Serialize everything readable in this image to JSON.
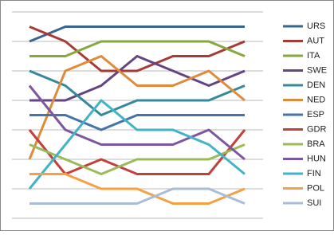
{
  "chart_data": {
    "type": "line",
    "categories": [
      null,
      null,
      null,
      null,
      null,
      null,
      null
    ],
    "ylim": [
      14,
      0
    ],
    "yticks": [
      0,
      2,
      4,
      6,
      8,
      10,
      12,
      14
    ],
    "grid": true,
    "legend": "right",
    "series": [
      {
        "name": "URS",
        "color": "#3a6591",
        "values": [
          2,
          1,
          1,
          1,
          1,
          1,
          1
        ]
      },
      {
        "name": "AUT",
        "color": "#a83a36",
        "values": [
          1,
          2,
          4,
          4,
          3,
          3,
          2
        ]
      },
      {
        "name": "ITA",
        "color": "#86a83c",
        "values": [
          3,
          3,
          2,
          2,
          2,
          2,
          3
        ]
      },
      {
        "name": "SWE",
        "color": "#654483",
        "values": [
          6,
          6,
          5,
          3,
          4,
          5,
          4
        ]
      },
      {
        "name": "DEN",
        "color": "#34899c",
        "values": [
          4,
          5,
          7,
          6,
          6,
          6,
          5
        ]
      },
      {
        "name": "NED",
        "color": "#e08b3c",
        "values": [
          10,
          4,
          3,
          5,
          5,
          4,
          6
        ]
      },
      {
        "name": "ESP",
        "color": "#4474aa",
        "values": [
          7,
          7,
          8,
          7,
          7,
          7,
          7
        ]
      },
      {
        "name": "GDR",
        "color": "#c2413c",
        "values": [
          8,
          11,
          10,
          11,
          11,
          11,
          8
        ]
      },
      {
        "name": "BRA",
        "color": "#9bbb59",
        "values": [
          9,
          10,
          11,
          10,
          10,
          10,
          9
        ]
      },
      {
        "name": "HUN",
        "color": "#7d56a2",
        "values": [
          5,
          8,
          9,
          9,
          9,
          8,
          10
        ]
      },
      {
        "name": "FIN",
        "color": "#43b3c9",
        "values": [
          12,
          9,
          6,
          8,
          8,
          9,
          11
        ]
      },
      {
        "name": "POL",
        "color": "#f5a043",
        "values": [
          11,
          11,
          12,
          12,
          13,
          13,
          12
        ]
      },
      {
        "name": "SUI",
        "color": "#a9bcd8",
        "values": [
          13,
          13,
          13,
          13,
          12,
          12,
          13
        ]
      }
    ]
  }
}
